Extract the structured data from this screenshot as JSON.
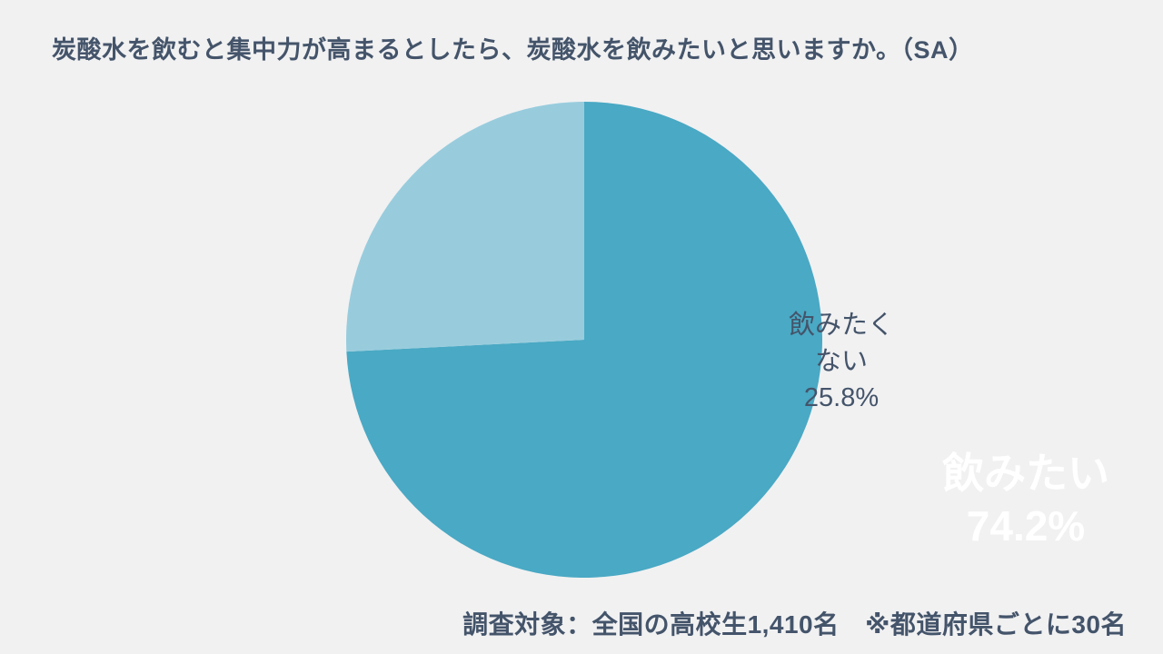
{
  "page": {
    "background_color": "#f1f1f2",
    "text_color": "#44546a"
  },
  "title": "炭酸水を飲むと集中力が高まるとしたら、炭酸水を飲みたいと思いますか。（SA）",
  "footnote": "調査対象：全国の高校生1,410名　※都道府県ごとに30名",
  "chart_data": {
    "type": "pie",
    "title": "炭酸水を飲むと集中力が高まるとしたら、炭酸水を飲みたいと思いますか。（SA）",
    "start_angle_deg": 0,
    "direction": "clockwise",
    "legend": "none",
    "slices": [
      {
        "label": "飲みたい",
        "value": 74.2,
        "display_pct": "74.2%",
        "color": "#4aa9c4",
        "label_color": "#ffffff"
      },
      {
        "label": "飲みたくない",
        "value": 25.8,
        "display_pct": "25.8%",
        "color": "#98ccdd",
        "label_color": "#44546a"
      }
    ],
    "annotation": "調査対象：全国の高校生1,410名　※都道府県ごとに30名"
  }
}
